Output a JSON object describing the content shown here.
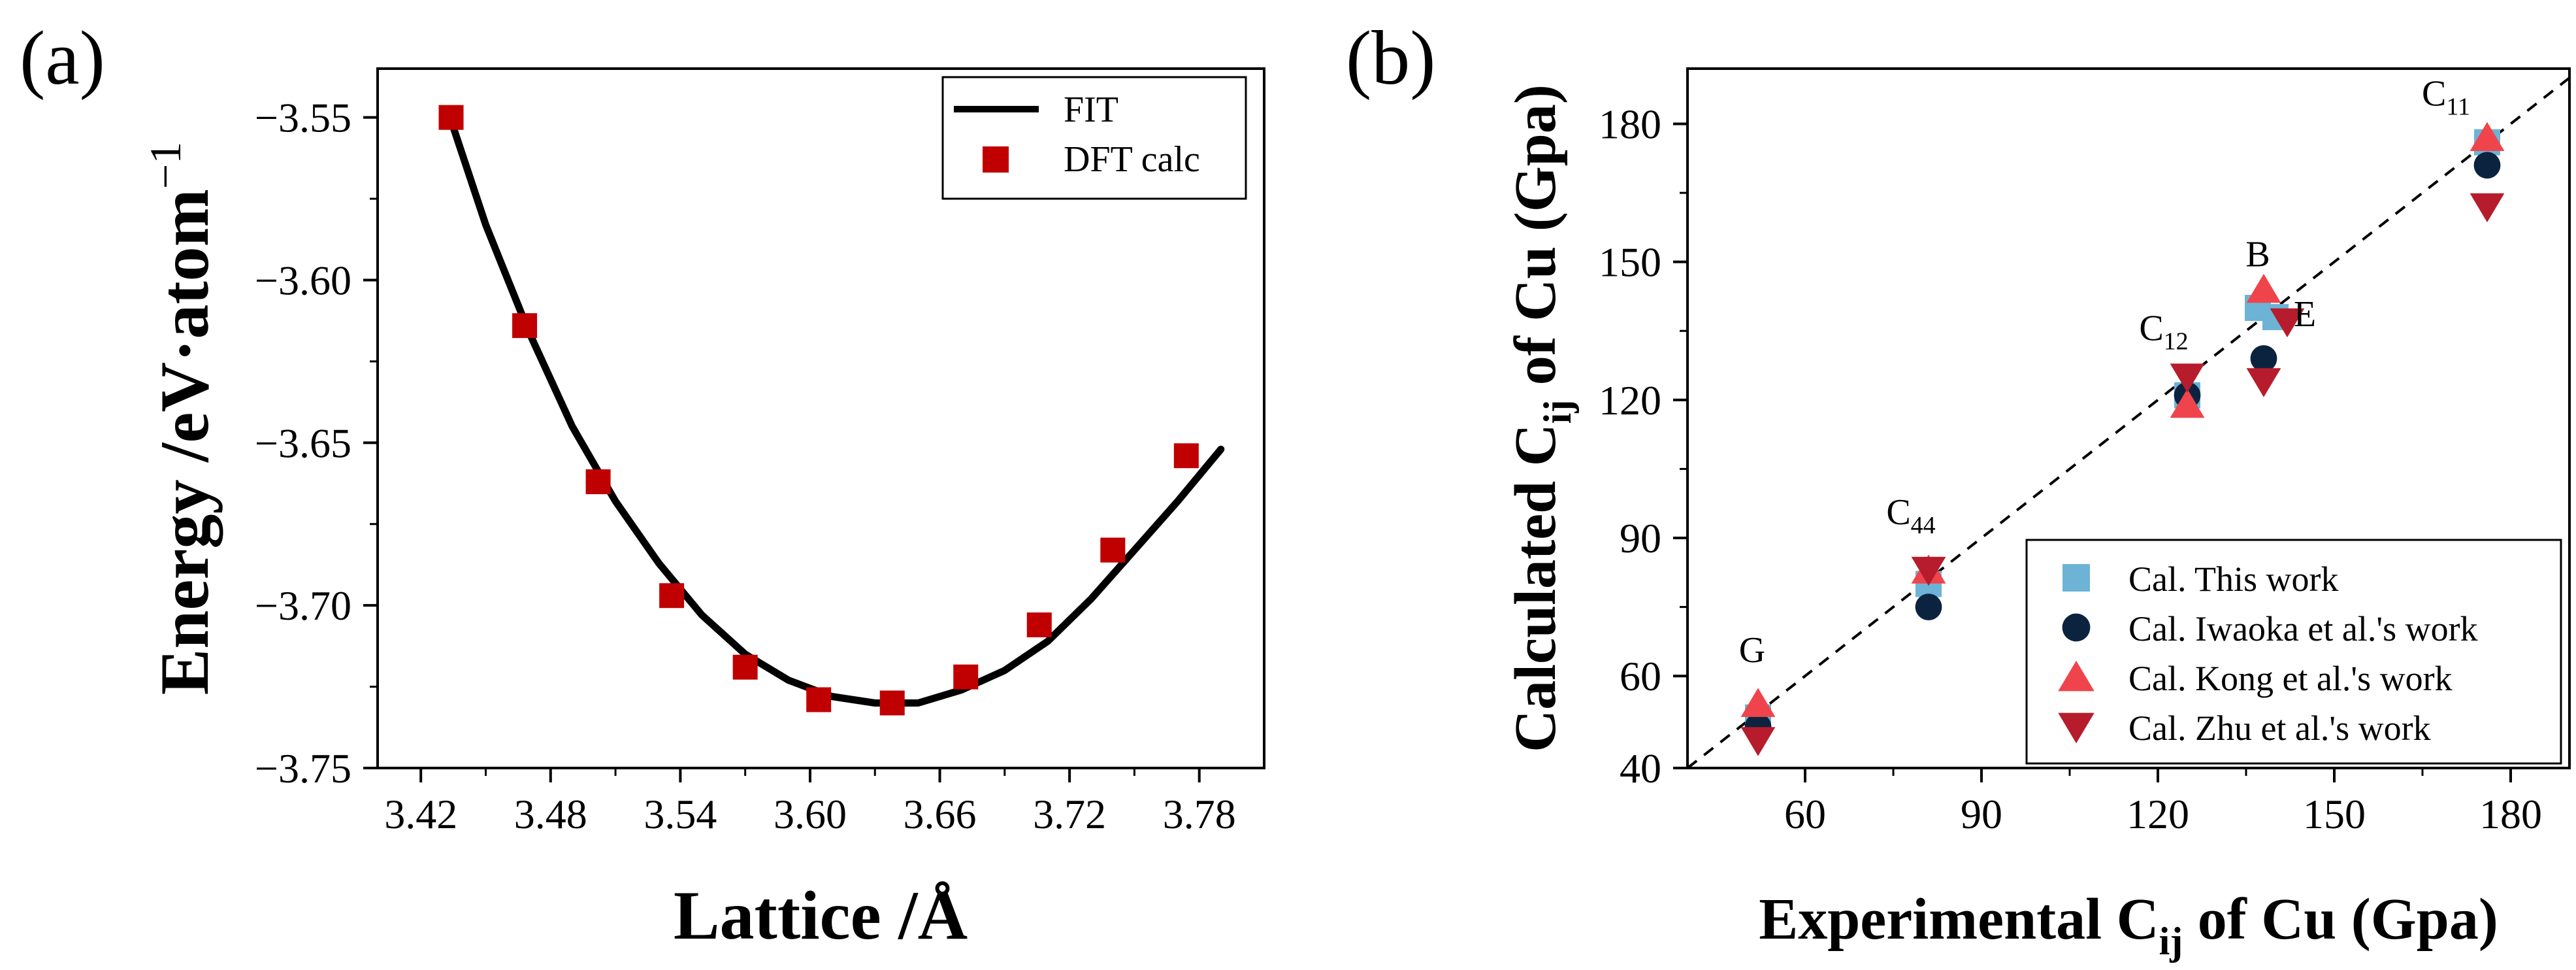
{
  "chart_data": [
    {
      "panel": "(a)",
      "type": "scatter",
      "title": "",
      "xlabel": "Lattice /Å",
      "ylabel_main": "Energy /eV·atom",
      "ylabel_sup": "−1",
      "xlim": [
        3.4,
        3.81
      ],
      "ylim": [
        -3.75,
        -3.535
      ],
      "xticks": [
        3.42,
        3.48,
        3.54,
        3.6,
        3.66,
        3.72,
        3.78
      ],
      "xtick_labels": [
        "3.42",
        "3.48",
        "3.54",
        "3.60",
        "3.66",
        "3.72",
        "3.78"
      ],
      "yticks": [
        -3.55,
        -3.6,
        -3.65,
        -3.7,
        -3.75
      ],
      "ytick_labels": [
        "−3.55",
        "−3.60",
        "−3.65",
        "−3.70",
        "−3.75"
      ],
      "legend_position": "top-right",
      "series": [
        {
          "name": "FIT",
          "kind": "line",
          "color": "#000000",
          "x": [
            3.434,
            3.45,
            3.47,
            3.49,
            3.51,
            3.53,
            3.55,
            3.57,
            3.59,
            3.61,
            3.63,
            3.65,
            3.67,
            3.69,
            3.71,
            3.73,
            3.75,
            3.77,
            3.79
          ],
          "y": [
            -3.551,
            -3.583,
            -3.616,
            -3.645,
            -3.668,
            -3.687,
            -3.703,
            -3.715,
            -3.723,
            -3.728,
            -3.73,
            -3.73,
            -3.726,
            -3.72,
            -3.711,
            -3.698,
            -3.683,
            -3.668,
            -3.652
          ]
        },
        {
          "name": "DFT calc",
          "kind": "marker",
          "marker": "square",
          "color": "#c00000",
          "x": [
            3.434,
            3.468,
            3.502,
            3.536,
            3.57,
            3.604,
            3.638,
            3.672,
            3.706,
            3.74,
            3.774
          ],
          "y": [
            -3.55,
            -3.614,
            -3.662,
            -3.697,
            -3.719,
            -3.729,
            -3.73,
            -3.722,
            -3.706,
            -3.683,
            -3.654
          ]
        }
      ]
    },
    {
      "panel": "(b)",
      "type": "scatter",
      "title": "",
      "xlabel_main": "Experimental C",
      "xlabel_sub": "ij",
      "xlabel_tail": " of Cu (Gpa)",
      "ylabel_main": "Calculated C",
      "ylabel_sub": "ij",
      "ylabel_tail": " of Cu (Gpa)",
      "xlim": [
        40,
        190
      ],
      "ylim": [
        40,
        192
      ],
      "xticks": [
        60,
        90,
        120,
        150,
        180
      ],
      "xtick_labels": [
        "60",
        "90",
        "120",
        "150",
        "180"
      ],
      "yticks": [
        40,
        60,
        90,
        120,
        150,
        180
      ],
      "ytick_labels": [
        "40",
        "60",
        "90",
        "120",
        "150",
        "180"
      ],
      "reference_line": "y = x (dashed)",
      "legend_position": "bottom-right",
      "annotations": [
        {
          "main": "C",
          "sub": "11",
          "x": 169,
          "y": 184
        },
        {
          "main": "B",
          "sub": "",
          "x": 137,
          "y": 149
        },
        {
          "main": "E",
          "sub": "",
          "x": 145,
          "y": 136
        },
        {
          "main": "C",
          "sub": "12",
          "x": 121,
          "y": 133
        },
        {
          "main": "C",
          "sub": "44",
          "x": 78,
          "y": 93
        },
        {
          "main": "G",
          "sub": "",
          "x": 51,
          "y": 63
        }
      ],
      "series": [
        {
          "name": "Cal. This work",
          "marker": "square",
          "color": "#6cb3d6",
          "x": [
            52,
            81,
            125,
            137,
            140,
            176
          ],
          "y": [
            51,
            80,
            121,
            140,
            138,
            176
          ]
        },
        {
          "name": "Cal. Iwaoka et al.'s work",
          "marker": "circle",
          "color": "#0c2340",
          "x": [
            52,
            81,
            125,
            138,
            176
          ],
          "y": [
            49,
            75,
            121,
            129,
            171
          ]
        },
        {
          "name": "Cal. Kong et al.'s work",
          "marker": "triangle-up",
          "color": "#f0444c",
          "x": [
            52,
            81,
            125,
            138,
            176
          ],
          "y": [
            54,
            83,
            119,
            144,
            177
          ]
        },
        {
          "name": "Cal. Zhu et al.'s work",
          "marker": "triangle-down",
          "color": "#b71c2c",
          "x": [
            52,
            81,
            125,
            138,
            142,
            176
          ],
          "y": [
            46,
            83,
            125,
            124,
            137,
            162
          ]
        }
      ]
    }
  ]
}
